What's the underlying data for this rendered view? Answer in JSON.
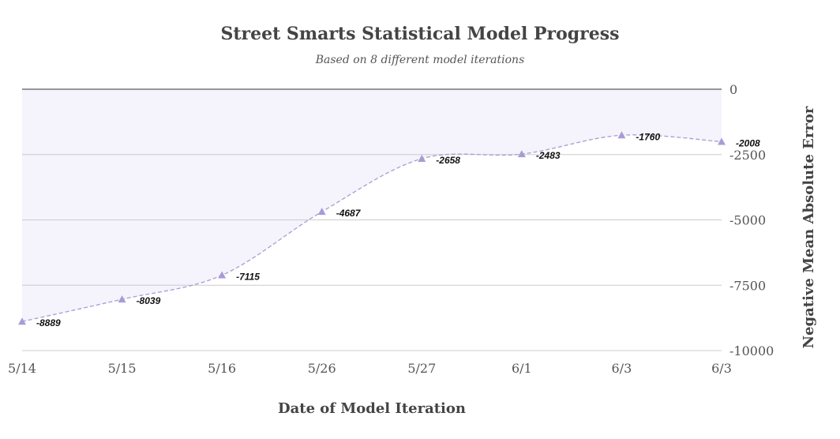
{
  "chart_data": {
    "type": "area",
    "title": "Street Smarts Statistical Model Progress",
    "subtitle": "Based on 8 different model iterations",
    "xlabel": "Date of Model Iteration",
    "ylabel": "Negative Mean Absolute Error",
    "categories": [
      "5/14",
      "5/15",
      "5/16",
      "5/26",
      "5/27",
      "6/1",
      "6/3",
      "6/3"
    ],
    "series": [
      {
        "values": [
          -8889,
          -8039,
          -7115,
          -4687,
          -2658,
          -2483,
          -1760,
          -2008
        ]
      }
    ],
    "ylim": [
      -10000,
      0
    ],
    "yticks": [
      {
        "value": 0,
        "label": "0"
      },
      {
        "value": -2500,
        "label": "-2500"
      },
      {
        "value": -5000,
        "label": "-5000"
      },
      {
        "value": -7500,
        "label": "-7500"
      },
      {
        "value": -10000,
        "label": "-10000"
      }
    ],
    "data_labels": true,
    "grid": true,
    "y_axis_side": "right",
    "legend": "none",
    "colors": {
      "line": "#a99bd6",
      "fill": "#f5f3fb",
      "grid": "#cccccc",
      "zero_line": "#333333"
    }
  }
}
